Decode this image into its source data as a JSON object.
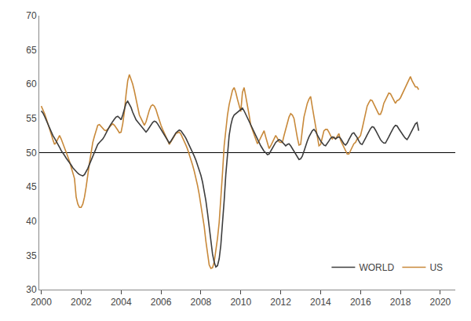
{
  "chart_data": {
    "type": "line",
    "x": [
      2000,
      2000.0833333333,
      2000.1666666667,
      2000.25,
      2000.3333333333,
      2000.4166666667,
      2000.5,
      2000.5833333333,
      2000.6666666667,
      2000.75,
      2000.8333333333,
      2000.9166666667,
      2001,
      2001.0833333333,
      2001.1666666667,
      2001.25,
      2001.3333333333,
      2001.4166666667,
      2001.5,
      2001.5833333333,
      2001.6666666667,
      2001.75,
      2001.8333333333,
      2001.9166666667,
      2002,
      2002.0833333333,
      2002.1666666667,
      2002.25,
      2002.3333333333,
      2002.4166666667,
      2002.5,
      2002.5833333333,
      2002.6666666667,
      2002.75,
      2002.8333333333,
      2002.9166666667,
      2003,
      2003.0833333333,
      2003.1666666667,
      2003.25,
      2003.3333333333,
      2003.4166666667,
      2003.5,
      2003.5833333333,
      2003.6666666667,
      2003.75,
      2003.8333333333,
      2003.9166666667,
      2004,
      2004.0833333333,
      2004.1666666667,
      2004.25,
      2004.3333333333,
      2004.4166666667,
      2004.5,
      2004.5833333333,
      2004.6666666667,
      2004.75,
      2004.8333333333,
      2004.9166666667,
      2005,
      2005.0833333333,
      2005.1666666667,
      2005.25,
      2005.3333333333,
      2005.4166666667,
      2005.5,
      2005.5833333333,
      2005.6666666667,
      2005.75,
      2005.8333333333,
      2005.9166666667,
      2006,
      2006.0833333333,
      2006.1666666667,
      2006.25,
      2006.3333333333,
      2006.4166666667,
      2006.5,
      2006.5833333333,
      2006.6666666667,
      2006.75,
      2006.8333333333,
      2006.9166666667,
      2007,
      2007.0833333333,
      2007.1666666667,
      2007.25,
      2007.3333333333,
      2007.4166666667,
      2007.5,
      2007.5833333333,
      2007.6666666667,
      2007.75,
      2007.8333333333,
      2007.9166666667,
      2008,
      2008.0833333333,
      2008.1666666667,
      2008.25,
      2008.3333333333,
      2008.4166666667,
      2008.5,
      2008.5833333333,
      2008.6666666667,
      2008.75,
      2008.8333333333,
      2008.9166666667,
      2009,
      2009.0833333333,
      2009.1666666667,
      2009.25,
      2009.3333333333,
      2009.4166666667,
      2009.5,
      2009.5833333333,
      2009.6666666667,
      2009.75,
      2009.8333333333,
      2009.9166666667,
      2010,
      2010.0833333333,
      2010.1666666667,
      2010.25,
      2010.3333333333,
      2010.4166666667,
      2010.5,
      2010.5833333333,
      2010.6666666667,
      2010.75,
      2010.8333333333,
      2010.9166666667,
      2011,
      2011.0833333333,
      2011.1666666667,
      2011.25,
      2011.3333333333,
      2011.4166666667,
      2011.5,
      2011.5833333333,
      2011.6666666667,
      2011.75,
      2011.8333333333,
      2011.9166666667,
      2012,
      2012.0833333333,
      2012.1666666667,
      2012.25,
      2012.3333333333,
      2012.4166666667,
      2012.5,
      2012.5833333333,
      2012.6666666667,
      2012.75,
      2012.8333333333,
      2012.9166666667,
      2013,
      2013.0833333333,
      2013.1666666667,
      2013.25,
      2013.3333333333,
      2013.4166666667,
      2013.5,
      2013.5833333333,
      2013.6666666667,
      2013.75,
      2013.8333333333,
      2013.9166666667,
      2014,
      2014.0833333333,
      2014.1666666667,
      2014.25,
      2014.3333333333,
      2014.4166666667,
      2014.5,
      2014.5833333333,
      2014.6666666667,
      2014.75,
      2014.8333333333,
      2014.9166666667,
      2015,
      2015.0833333333,
      2015.1666666667,
      2015.25,
      2015.3333333333,
      2015.4166666667,
      2015.5,
      2015.5833333333,
      2015.6666666667,
      2015.75,
      2015.8333333333,
      2015.9166666667,
      2016,
      2016.0833333333,
      2016.1666666667,
      2016.25,
      2016.3333333333,
      2016.4166666667,
      2016.5,
      2016.5833333333,
      2016.6666666667,
      2016.75,
      2016.8333333333,
      2016.9166666667,
      2017,
      2017.0833333333,
      2017.1666666667,
      2017.25,
      2017.3333333333,
      2017.4166666667,
      2017.5,
      2017.5833333333,
      2017.6666666667,
      2017.75,
      2017.8333333333,
      2017.9166666667,
      2018,
      2018.0833333333,
      2018.1666666667,
      2018.25,
      2018.3333333333,
      2018.4166666667,
      2018.5,
      2018.5833333333,
      2018.6666666667,
      2018.75,
      2018.8333333333,
      2018.9166666667
    ],
    "series": [
      {
        "name": "WORLD",
        "color": "#3d3d3d",
        "values": [
          56.1,
          55.8,
          55.3,
          54.7,
          54.1,
          53.6,
          53.0,
          52.5,
          52.1,
          51.7,
          51.2,
          50.8,
          50.3,
          50.0,
          49.6,
          49.2,
          48.9,
          48.5,
          48.2,
          47.8,
          47.5,
          47.2,
          47.0,
          46.8,
          46.7,
          46.6,
          46.8,
          47.2,
          47.7,
          48.3,
          48.9,
          49.5,
          50.1,
          50.7,
          51.2,
          51.5,
          51.7,
          52.0,
          52.4,
          52.9,
          53.4,
          53.8,
          54.2,
          54.6,
          54.9,
          55.2,
          55.3,
          55.1,
          54.8,
          55.5,
          56.5,
          57.2,
          57.5,
          57.1,
          56.6,
          55.9,
          55.3,
          54.8,
          54.5,
          54.2,
          53.9,
          53.5,
          53.2,
          53.0,
          53.3,
          53.7,
          54.1,
          54.4,
          54.6,
          54.5,
          54.2,
          53.8,
          53.4,
          53.0,
          52.6,
          52.2,
          51.8,
          51.4,
          51.7,
          52.1,
          52.5,
          52.9,
          53.1,
          53.3,
          53.2,
          52.9,
          52.5,
          52.1,
          51.6,
          51.1,
          50.6,
          50.1,
          49.5,
          48.9,
          48.2,
          47.5,
          46.7,
          45.7,
          44.5,
          43.0,
          41.2,
          39.2,
          37.0,
          35.2,
          34.0,
          33.3,
          33.5,
          34.5,
          36.5,
          39.5,
          43.0,
          46.8,
          50.2,
          52.5,
          54.0,
          55.0,
          55.5,
          55.7,
          55.8,
          56.0,
          56.2,
          56.5,
          56.1,
          55.6,
          55.0,
          54.4,
          54.0,
          53.5,
          53.0,
          52.5,
          52.0,
          51.5,
          51.0,
          50.6,
          50.2,
          50.0,
          49.7,
          49.8,
          50.2,
          50.7,
          51.1,
          51.5,
          51.7,
          51.9,
          51.8,
          51.5,
          51.2,
          51.0,
          51.2,
          51.3,
          51.0,
          50.6,
          50.2,
          49.8,
          49.3,
          49.0,
          49.1,
          49.5,
          50.2,
          51.0,
          51.7,
          52.3,
          52.8,
          53.2,
          53.4,
          53.1,
          52.6,
          52.1,
          51.7,
          51.4,
          51.1,
          51.0,
          51.3,
          51.7,
          52.1,
          52.3,
          52.2,
          52.0,
          52.2,
          52.3,
          52.1,
          51.7,
          51.3,
          51.1,
          51.4,
          51.9,
          52.4,
          52.8,
          52.9,
          52.6,
          52.2,
          51.7,
          51.3,
          51.2,
          51.6,
          52.1,
          52.6,
          53.1,
          53.5,
          53.8,
          53.7,
          53.3,
          52.8,
          52.3,
          51.9,
          51.6,
          51.4,
          51.4,
          51.8,
          52.3,
          52.8,
          53.3,
          53.7,
          54.0,
          53.9,
          53.5,
          53.1,
          52.7,
          52.4,
          52.1,
          51.9,
          52.3,
          52.8,
          53.3,
          53.8,
          54.2,
          54.4,
          53.2
        ]
      },
      {
        "name": "US",
        "color": "#c8893a",
        "values": [
          56.8,
          56.3,
          55.7,
          55.0,
          54.3,
          53.5,
          52.7,
          51.9,
          51.2,
          51.5,
          52.0,
          52.5,
          52.0,
          51.4,
          50.8,
          50.1,
          49.4,
          48.7,
          47.9,
          47.1,
          46.2,
          43.5,
          42.5,
          42.0,
          42.0,
          42.5,
          43.5,
          45.0,
          47.0,
          48.5,
          50.0,
          51.5,
          52.4,
          53.3,
          54.0,
          54.1,
          53.8,
          53.5,
          53.3,
          53.2,
          53.4,
          53.7,
          54.0,
          54.2,
          54.0,
          53.7,
          53.3,
          52.9,
          53.0,
          54.2,
          56.0,
          58.5,
          60.5,
          61.4,
          60.8,
          60.0,
          59.0,
          57.8,
          56.6,
          55.5,
          55.0,
          54.5,
          54.0,
          54.5,
          55.5,
          56.2,
          56.8,
          57.0,
          56.8,
          56.3,
          55.5,
          54.7,
          54.0,
          53.4,
          52.9,
          52.3,
          51.8,
          51.2,
          51.6,
          52.0,
          52.4,
          52.8,
          52.9,
          53.0,
          52.7,
          52.2,
          51.7,
          51.1,
          50.5,
          49.8,
          49.0,
          48.2,
          47.3,
          46.3,
          45.2,
          43.9,
          42.5,
          41.0,
          39.2,
          37.1,
          35.0,
          33.6,
          33.1,
          33.2,
          34.0,
          35.5,
          37.5,
          39.8,
          43.0,
          47.0,
          51.0,
          53.5,
          55.5,
          57.0,
          58.2,
          59.1,
          59.5,
          58.8,
          57.8,
          57.0,
          56.0,
          58.8,
          59.5,
          58.2,
          57.0,
          55.5,
          54.0,
          53.3,
          52.6,
          51.9,
          51.3,
          51.7,
          52.2,
          52.7,
          53.2,
          52.3,
          51.4,
          50.6,
          51.0,
          51.5,
          52.0,
          52.5,
          52.1,
          51.6,
          51.5,
          51.5,
          52.5,
          53.5,
          54.5,
          55.2,
          55.7,
          55.5,
          55.0,
          53.5,
          52.2,
          51.1,
          51.2,
          53.3,
          55.2,
          56.2,
          57.2,
          57.8,
          58.2,
          56.7,
          55.2,
          53.7,
          52.2,
          51.0,
          51.2,
          52.2,
          53.2,
          53.4,
          53.4,
          53.0,
          52.5,
          52.0,
          52.3,
          52.0,
          52.4,
          52.8,
          51.8,
          51.3,
          50.8,
          50.3,
          49.8,
          49.8,
          50.3,
          50.8,
          51.3,
          51.5,
          52.0,
          52.2,
          52.5,
          53.5,
          54.7,
          55.8,
          56.8,
          57.3,
          57.7,
          57.6,
          57.1,
          56.6,
          56.1,
          55.6,
          55.6,
          56.2,
          57.2,
          57.7,
          58.2,
          58.7,
          58.6,
          58.1,
          57.6,
          57.2,
          57.6,
          57.7,
          58.0,
          58.5,
          59.0,
          59.5,
          60.1,
          60.5,
          61.1,
          60.5,
          60.0,
          59.6,
          59.6,
          59.2
        ]
      }
    ],
    "reference_lines": [
      {
        "y": 50,
        "color": "#000000"
      }
    ],
    "xlim": [
      1999.9,
      2020.75
    ],
    "xticks": [
      2000,
      2002,
      2004,
      2006,
      2008,
      2010,
      2012,
      2014,
      2016,
      2018,
      2020
    ],
    "ylim": [
      30,
      70
    ],
    "yticks": [
      30,
      35,
      40,
      45,
      50,
      55,
      60,
      65,
      70
    ],
    "grid": false,
    "legend": "lower right"
  }
}
